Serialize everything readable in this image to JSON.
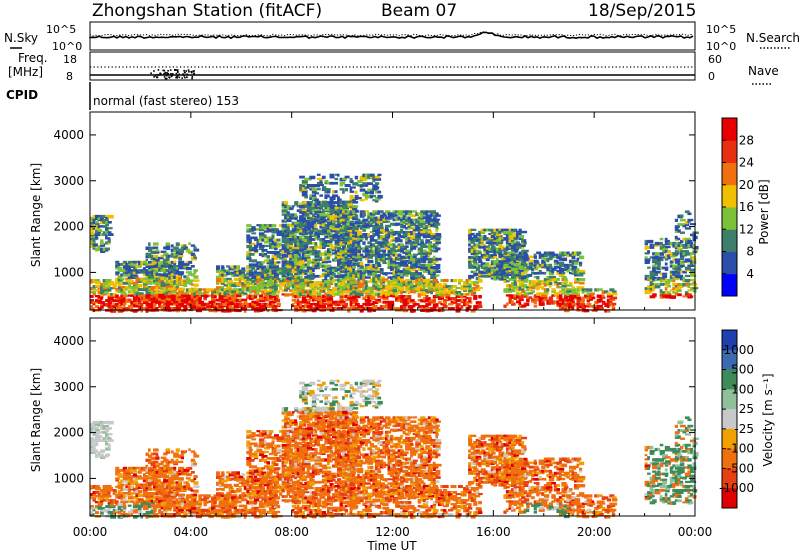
{
  "header": {
    "station": "Zhongshan Station (fitACF)",
    "beam": "Beam 07",
    "date": "18/Sep/2015"
  },
  "top_panels": {
    "nsky_label": "N.Sky",
    "nsky_ticks": [
      "10^5",
      "10^0"
    ],
    "nsearch_label": "N.Search",
    "nsearch_ticks": [
      "10^5",
      "10^0"
    ],
    "freq_label_1": "Freq.",
    "freq_label_2": "[MHz]",
    "freq_ticks": [
      "18",
      "8"
    ],
    "nave_label": "Nave",
    "nave_ticks": [
      "60",
      "0"
    ],
    "cpid_label": "CPID",
    "cpid_text": "normal (fast stereo) 153"
  },
  "x_ticks": [
    "00:00",
    "04:00",
    "08:00",
    "12:00",
    "16:00",
    "20:00",
    "00:00"
  ],
  "x_label": "Time UT",
  "chart_data": [
    {
      "type": "heatmap",
      "name": "power",
      "ylabel": "Slant Range [km]",
      "ylim": [
        180,
        4500
      ],
      "y_ticks": [
        "1000",
        "2000",
        "3000",
        "4000"
      ],
      "y_tick_values": [
        1000,
        2000,
        3000,
        4000
      ],
      "xlim_hours": [
        0,
        24
      ],
      "colorbar_label": "Power [dB]",
      "colorbar_ticks": [
        "4",
        "8",
        "12",
        "16",
        "20",
        "24",
        "28"
      ],
      "colorbar_colors": [
        "#0000ff",
        "#2b4ea8",
        "#3d7e6a",
        "#7cc238",
        "#f0c000",
        "#f07010",
        "#e83010",
        "#e80000"
      ]
    },
    {
      "type": "heatmap",
      "name": "velocity",
      "ylabel": "Slant Range [km]",
      "ylim": [
        180,
        4500
      ],
      "y_ticks": [
        "1000",
        "2000",
        "3000",
        "4000"
      ],
      "y_tick_values": [
        1000,
        2000,
        3000,
        4000
      ],
      "xlim_hours": [
        0,
        24
      ],
      "colorbar_label": "Velocity [m s⁻¹]",
      "colorbar_ticks": [
        "1000",
        "500",
        "100",
        "25",
        "-25",
        "-100",
        "-500",
        "-1000"
      ],
      "colorbar_colors": [
        "#1f3fae",
        "#3a6ab0",
        "#3d8a5a",
        "#8fc09a",
        "#c8c8c8",
        "#f0a000",
        "#f07010",
        "#e84010",
        "#e00000"
      ]
    }
  ]
}
